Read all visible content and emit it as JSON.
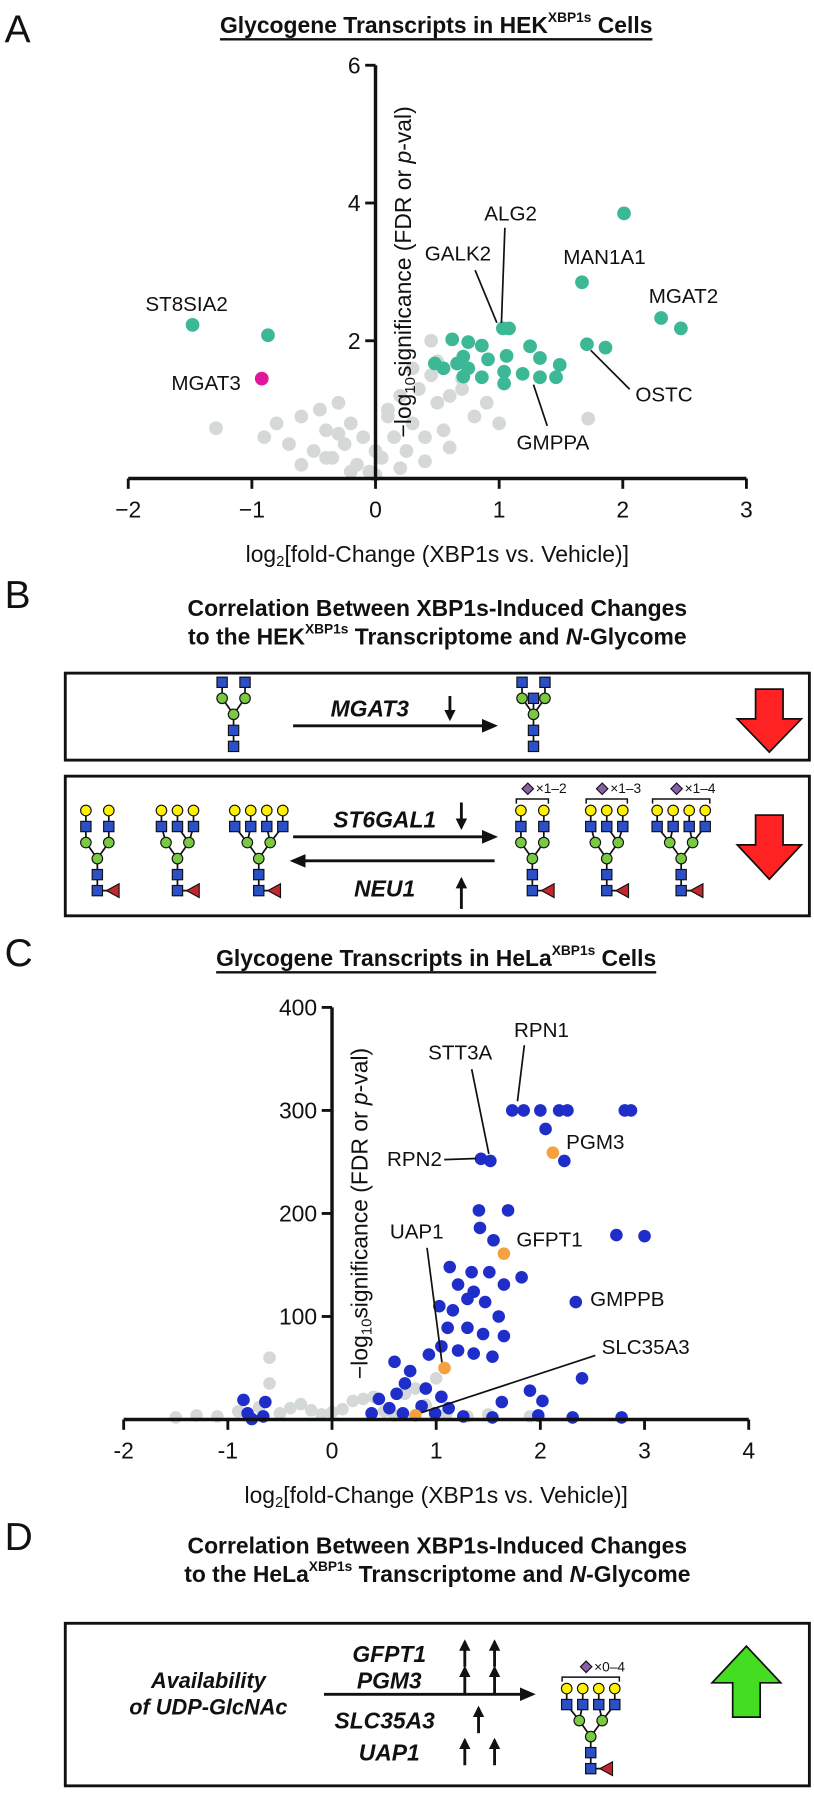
{
  "panel_labels": [
    "A",
    "B",
    "C",
    "D"
  ],
  "chart_data": [
    {
      "type": "scatter",
      "title": [
        "Glycogene Transcripts in HEK",
        "XBP1s",
        " Cells"
      ],
      "xlabel": [
        "log",
        "2",
        "[fold-Change (XBP1s vs. Vehicle)]"
      ],
      "ylabel": [
        "−log",
        "10",
        "significance (FDR or ",
        "p",
        "-val)"
      ],
      "xlim": [
        -2,
        3
      ],
      "xticks": [
        {
          "value": -2,
          "label": "−2"
        },
        {
          "value": -1,
          "label": "−1"
        },
        0,
        1,
        2,
        3
      ],
      "ylim": [
        0,
        6
      ],
      "yticks": [
        2,
        4,
        6
      ],
      "series": [
        {
          "color": "#d5d8d8",
          "x": [
            -0.9,
            -0.8,
            -0.7,
            -0.6,
            -0.5,
            -0.45,
            -0.4,
            -0.35,
            -0.3,
            -0.25,
            -0.2,
            -0.15,
            -0.1,
            -0.05,
            0,
            0.05,
            0.1,
            0.15,
            0.2,
            0.25,
            0.3,
            0.35,
            0.4,
            0.45,
            0.5,
            0.55,
            0.6,
            0.7,
            0.8,
            0.9,
            1.0,
            -0.6,
            -0.4,
            -0.2,
            0,
            0.2,
            0.4,
            0.6,
            -0.3,
            0.1,
            0.3,
            0.5,
            -1.29,
            1.72,
            0.45,
            0.7
          ],
          "y": [
            0.6,
            0.8,
            0.5,
            0.9,
            0.4,
            1.0,
            0.7,
            0.3,
            1.1,
            0.5,
            0.8,
            0.2,
            0.6,
            0.1,
            0.4,
            0.3,
            0.9,
            0.6,
            1.2,
            0.4,
            0.8,
            1.3,
            0.6,
            1.5,
            1.1,
            0.7,
            1.2,
            1.3,
            0.9,
            1.1,
            0.8,
            0.2,
            0.3,
            0.1,
            0.05,
            0.15,
            0.25,
            0.45,
            0.65,
            1.0,
            1.6,
            1.7,
            0.73,
            0.87,
            2.0,
            1.45
          ]
        },
        {
          "color": "#e0179a",
          "x": [
            -0.92
          ],
          "y": [
            1.45
          ]
        },
        {
          "color": "#3cb896",
          "x": [
            -1.48,
            -0.87,
            2.01,
            1.67,
            2.31,
            2.47,
            1.71,
            1.86,
            1.03,
            1.08,
            0.62,
            0.75,
            0.86,
            1.06,
            1.25,
            1.33,
            1.49,
            1.46,
            0.71,
            0.48,
            0.55,
            0.66,
            0.75,
            0.91,
            1.04,
            1.19,
            1.33,
            0.71,
            0.86,
            1.04
          ],
          "y": [
            2.23,
            2.08,
            3.85,
            2.85,
            2.33,
            2.18,
            1.95,
            1.9,
            2.18,
            2.18,
            2.02,
            1.98,
            1.93,
            1.78,
            1.92,
            1.75,
            1.65,
            1.47,
            1.77,
            1.67,
            1.6,
            1.67,
            1.6,
            1.73,
            1.55,
            1.52,
            1.47,
            1.48,
            1.47,
            1.38
          ]
        }
      ],
      "annotations": [
        "ST8SIA2",
        "MGAT3",
        "GALK2",
        "ALG2",
        "MAN1A1",
        "MGAT2",
        "OSTC",
        "GMPPA"
      ]
    },
    {
      "type": "scatter",
      "title": [
        "Glycogene Transcripts in HeLa",
        "XBP1s",
        " Cells"
      ],
      "xlabel": [
        "log",
        "2",
        "[fold-Change (XBP1s vs. Vehicle)]"
      ],
      "ylabel": [
        "−log",
        "10",
        "significance (FDR or ",
        "p",
        "-val)"
      ],
      "xlim": [
        -2,
        4
      ],
      "xticks": [
        -2,
        -1,
        0,
        1,
        2,
        3,
        4
      ],
      "ylim": [
        0,
        400
      ],
      "yticks": [
        100,
        200,
        300,
        400
      ],
      "series": [
        {
          "color": "#d5d8d8",
          "x": [
            -1.5,
            -1.3,
            -1.1,
            -0.9,
            -0.7,
            -0.5,
            -0.3,
            -0.1,
            0.1,
            0.3,
            0.5,
            0.7,
            0.9,
            1.1,
            1.3,
            -0.6,
            -0.2,
            0.2,
            0.6,
            1.0,
            -0.6,
            -0.4,
            0,
            0.4,
            0.8,
            1.5,
            1.9
          ],
          "y": [
            2,
            4,
            3,
            8,
            12,
            6,
            15,
            5,
            10,
            20,
            8,
            25,
            14,
            6,
            3,
            35,
            9,
            18,
            4,
            40,
            60,
            11,
            7,
            22,
            30,
            5,
            3
          ]
        },
        {
          "color": "#1f2ec8",
          "x": [
            1.73,
            1.84,
            2.0,
            2.18,
            2.26,
            2.81,
            2.87,
            2.05,
            1.43,
            1.52,
            2.23,
            1.41,
            1.69,
            1.42,
            1.55,
            3.0,
            2.73,
            1.13,
            1.34,
            1.51,
            1.82,
            1.21,
            1.36,
            1.65,
            2.34,
            1.03,
            1.16,
            1.3,
            1.47,
            1.6,
            1.11,
            1.3,
            1.45,
            1.65,
            1.05,
            1.21,
            1.36,
            1.54,
            2.4,
            0.93,
            0.75,
            0.6,
            -0.85,
            -0.64,
            -0.81,
            -0.66,
            -0.77,
            0.38,
            0.55,
            0.68,
            0.86,
            0.99,
            1.12,
            1.26,
            1.54,
            1.98,
            2.31,
            2.78,
            1.63,
            2.02,
            0.45,
            0.62,
            0.9,
            1.05,
            0.7,
            1.9
          ],
          "y": [
            300,
            300,
            300,
            300,
            300,
            300,
            300,
            282,
            253,
            251,
            251,
            203,
            203,
            186,
            174,
            178,
            179,
            148,
            143,
            143,
            138,
            131,
            124,
            131,
            114,
            110,
            106,
            117,
            114,
            100,
            89,
            89,
            83,
            81,
            71,
            67,
            64,
            61,
            40,
            63,
            47,
            56,
            19,
            17,
            6,
            3,
            0.5,
            6,
            11,
            6,
            13,
            6,
            11,
            3,
            2,
            4,
            2,
            2,
            17,
            18,
            20,
            25,
            30,
            22,
            35,
            28
          ]
        },
        {
          "color": "#f5a142",
          "x": [
            2.12,
            1.65,
            1.08,
            0.8
          ],
          "y": [
            259,
            161,
            50,
            4
          ]
        }
      ],
      "annotations": [
        "RPN1",
        "STT3A",
        "RPN2",
        "PGM3",
        "UAP1",
        "GFPT1",
        "GMPPB",
        "SLC35A3"
      ]
    }
  ],
  "panel_b": {
    "title": [
      "Correlation Between XBP1s-Induced Changes",
      "to the HEK",
      "XBP1s",
      " Transcriptome and ",
      "N",
      "-Glycome"
    ],
    "row1": {
      "gene": "MGAT3"
    },
    "row2": {
      "forward_gene": "ST6GAL1",
      "reverse_gene": "NEU1",
      "multipliers": [
        "×1–2",
        "×1–3",
        "×1–4"
      ]
    }
  },
  "panel_d": {
    "title": [
      "Correlation Between XBP1s-Induced Changes",
      "to the HeLa",
      "XBP1s",
      " Transcriptome and ",
      "N",
      "-Glycome"
    ],
    "substrate": [
      "Availability",
      "of UDP-GlcNAc"
    ],
    "genes": [
      "GFPT1",
      "PGM3",
      "SLC35A3",
      "UAP1"
    ],
    "multiplier": "×0–4"
  }
}
